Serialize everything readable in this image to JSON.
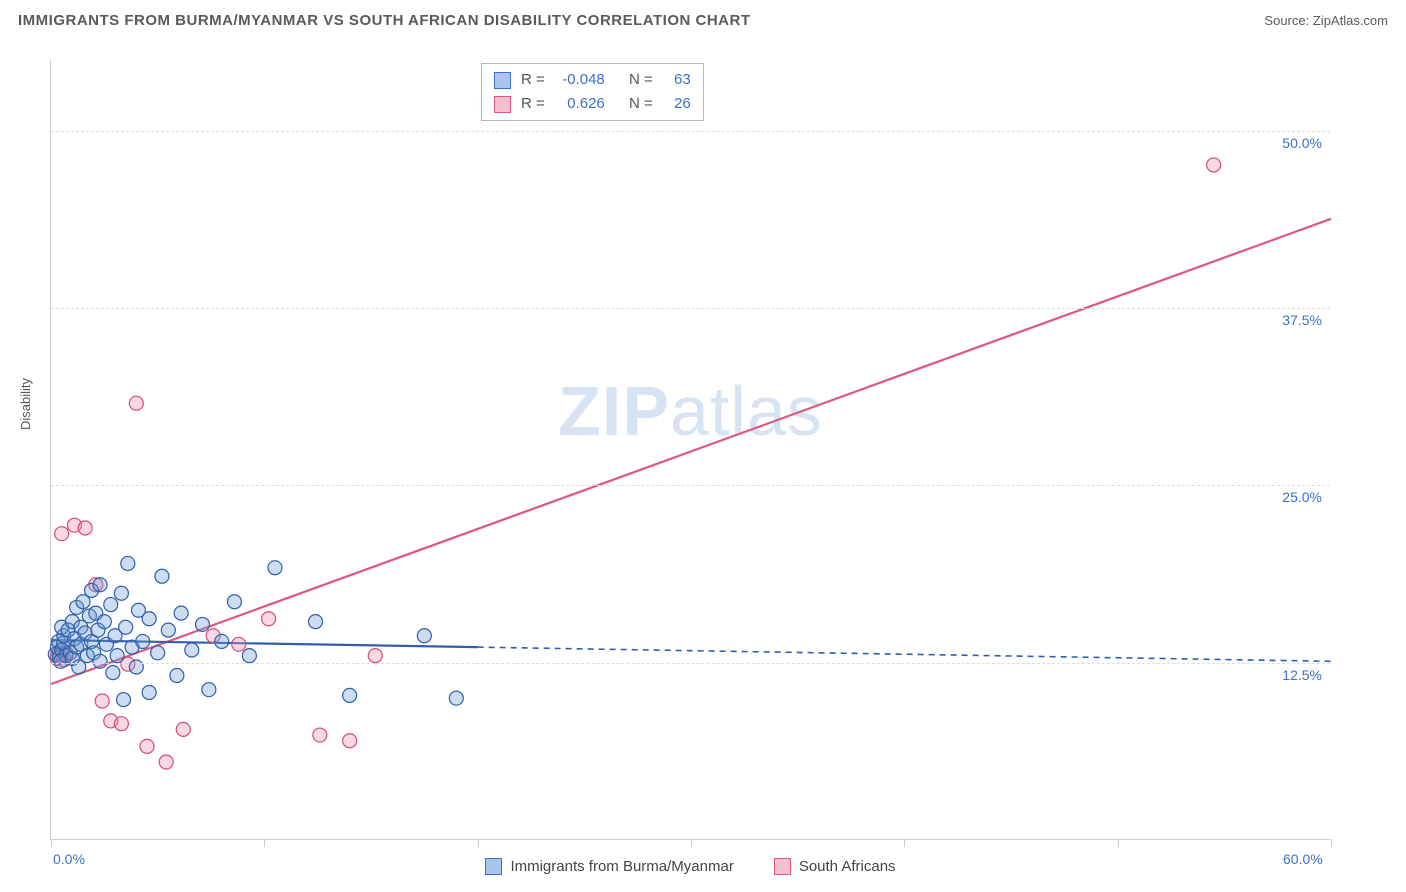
{
  "header": {
    "title": "IMMIGRANTS FROM BURMA/MYANMAR VS SOUTH AFRICAN DISABILITY CORRELATION CHART",
    "source_label": "Source:",
    "source_name": "ZipAtlas.com"
  },
  "watermark": {
    "pre": "ZIP",
    "post": "atlas"
  },
  "chart": {
    "type": "scatter",
    "y_axis_title": "Disability",
    "background_color": "#ffffff",
    "grid_color": "#dddddd",
    "axis_color": "#cccccc",
    "tick_color": "#cccccc",
    "axis_label_color": "#3b6fc9",
    "axis_label_fontsize": 14,
    "xlim": [
      0,
      60
    ],
    "ylim": [
      0,
      55
    ],
    "x_ticks": [
      0,
      10,
      20,
      30,
      40,
      50,
      60
    ],
    "x_tick_labels": {
      "0": "0.0%",
      "60": "60.0%"
    },
    "y_gridlines": [
      12.5,
      25.0,
      37.5,
      50.0
    ],
    "y_tick_labels": [
      "12.5%",
      "25.0%",
      "37.5%",
      "50.0%"
    ],
    "marker_radius": 7,
    "marker_stroke_width": 1.2,
    "marker_fill_opacity": 0.35,
    "trendline_width": 2.2,
    "trendline_dash": "6,5",
    "series": [
      {
        "name": "Immigrants from Burma/Myanmar",
        "swatch_fill": "#a9c6ea",
        "swatch_stroke": "#3b6fc9",
        "marker_fill": "#6f9cd6",
        "marker_stroke": "#2e5fa8",
        "r_label": "R =",
        "r_value": "-0.048",
        "n_label": "N =",
        "n_value": "63",
        "trend": {
          "x1": 0,
          "y1": 14.1,
          "x2": 20,
          "y2": 13.6,
          "ext_x2": 60,
          "ext_y2": 12.6,
          "color": "#2e5fa8"
        },
        "points": [
          [
            0.2,
            13.1
          ],
          [
            0.3,
            13.6
          ],
          [
            0.35,
            14.0
          ],
          [
            0.4,
            12.9
          ],
          [
            0.5,
            13.4
          ],
          [
            0.6,
            13.9
          ],
          [
            0.6,
            14.4
          ],
          [
            0.7,
            13.0
          ],
          [
            0.45,
            12.6
          ],
          [
            0.5,
            15.0
          ],
          [
            0.8,
            14.8
          ],
          [
            0.9,
            13.2
          ],
          [
            1.0,
            12.8
          ],
          [
            1.0,
            15.4
          ],
          [
            1.1,
            14.2
          ],
          [
            1.2,
            13.6
          ],
          [
            1.2,
            16.4
          ],
          [
            1.3,
            12.2
          ],
          [
            1.4,
            15.0
          ],
          [
            1.4,
            13.8
          ],
          [
            1.5,
            16.8
          ],
          [
            1.6,
            14.6
          ],
          [
            1.7,
            13.0
          ],
          [
            1.8,
            15.8
          ],
          [
            1.9,
            14.0
          ],
          [
            1.9,
            17.6
          ],
          [
            2.0,
            13.2
          ],
          [
            2.1,
            16.0
          ],
          [
            2.2,
            14.8
          ],
          [
            2.3,
            12.6
          ],
          [
            2.3,
            18.0
          ],
          [
            2.5,
            15.4
          ],
          [
            2.6,
            13.8
          ],
          [
            2.8,
            16.6
          ],
          [
            2.9,
            11.8
          ],
          [
            3.0,
            14.4
          ],
          [
            3.1,
            13.0
          ],
          [
            3.3,
            17.4
          ],
          [
            3.4,
            9.9
          ],
          [
            3.5,
            15.0
          ],
          [
            3.6,
            19.5
          ],
          [
            3.8,
            13.6
          ],
          [
            4.0,
            12.2
          ],
          [
            4.1,
            16.2
          ],
          [
            4.3,
            14.0
          ],
          [
            4.6,
            15.6
          ],
          [
            4.6,
            10.4
          ],
          [
            5.0,
            13.2
          ],
          [
            5.2,
            18.6
          ],
          [
            5.5,
            14.8
          ],
          [
            5.9,
            11.6
          ],
          [
            6.1,
            16.0
          ],
          [
            6.6,
            13.4
          ],
          [
            7.1,
            15.2
          ],
          [
            7.4,
            10.6
          ],
          [
            8.0,
            14.0
          ],
          [
            8.6,
            16.8
          ],
          [
            9.3,
            13.0
          ],
          [
            10.5,
            19.2
          ],
          [
            12.4,
            15.4
          ],
          [
            14.0,
            10.2
          ],
          [
            17.5,
            14.4
          ],
          [
            19.0,
            10.0
          ]
        ]
      },
      {
        "name": "South Africans",
        "swatch_fill": "#f5c0cd",
        "swatch_stroke": "#e0567d",
        "marker_fill": "#ea8fa8",
        "marker_stroke": "#d84c74",
        "r_label": "R =",
        "r_value": "0.626",
        "n_label": "N =",
        "n_value": "26",
        "trend": {
          "x1": 0,
          "y1": 11.0,
          "x2": 60,
          "y2": 43.8,
          "color": "#e0567d"
        },
        "points": [
          [
            0.3,
            13.0
          ],
          [
            0.4,
            13.3
          ],
          [
            0.5,
            13.1
          ],
          [
            0.55,
            13.4
          ],
          [
            0.7,
            13.2
          ],
          [
            0.3,
            12.8
          ],
          [
            0.6,
            12.7
          ],
          [
            0.5,
            21.6
          ],
          [
            1.1,
            22.2
          ],
          [
            1.6,
            22.0
          ],
          [
            2.1,
            18.0
          ],
          [
            2.4,
            9.8
          ],
          [
            2.8,
            8.4
          ],
          [
            3.3,
            8.2
          ],
          [
            3.6,
            12.4
          ],
          [
            4.0,
            30.8
          ],
          [
            4.5,
            6.6
          ],
          [
            5.4,
            5.5
          ],
          [
            6.2,
            7.8
          ],
          [
            7.6,
            14.4
          ],
          [
            8.8,
            13.8
          ],
          [
            10.2,
            15.6
          ],
          [
            12.6,
            7.4
          ],
          [
            14.0,
            7.0
          ],
          [
            15.2,
            13.0
          ],
          [
            54.5,
            47.6
          ]
        ]
      }
    ]
  }
}
